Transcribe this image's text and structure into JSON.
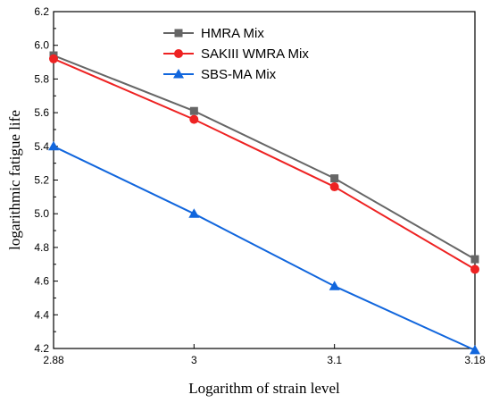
{
  "chart_data": {
    "type": "line",
    "categories": [
      "2.88",
      "3",
      "3.1",
      "3.18"
    ],
    "xlabel": "Logarithm of strain level",
    "ylabel": "logarithmic fatigue life",
    "ylim": [
      4.2,
      6.2
    ],
    "yticks": [
      "4.2",
      "4.4",
      "4.6",
      "4.8",
      "5.0",
      "5.2",
      "5.4",
      "5.6",
      "5.8",
      "6.0",
      "6.2"
    ],
    "grid": false,
    "legend_position": "top-right",
    "series": [
      {
        "name": "HMRA Mix",
        "values": [
          5.94,
          5.61,
          5.21,
          4.73
        ],
        "color": "#666666",
        "marker": "square"
      },
      {
        "name": "SAKIII WMRA Mix",
        "values": [
          5.92,
          5.56,
          5.16,
          4.67
        ],
        "color": "#ee2222",
        "marker": "circle"
      },
      {
        "name": "SBS-MA Mix",
        "values": [
          5.4,
          5.0,
          4.57,
          4.19
        ],
        "color": "#1166dd",
        "marker": "triangle"
      }
    ]
  }
}
